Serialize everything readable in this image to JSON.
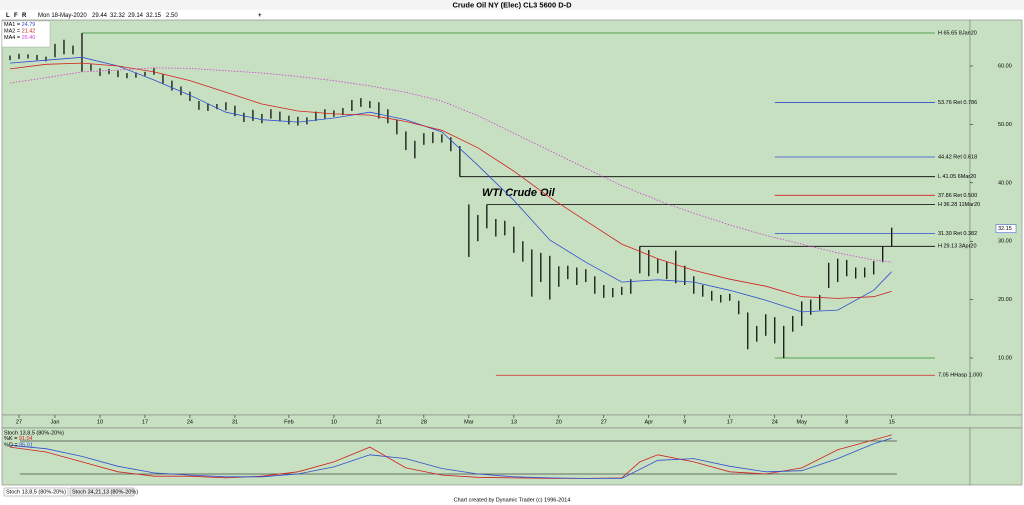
{
  "window": {
    "toolbar": {
      "letters": [
        "L",
        "F",
        "R"
      ],
      "date": "Mon 18-May-2020",
      "open": "29.44",
      "high": "32.32",
      "low": "29.14",
      "close": "32.15",
      "change": "2.50",
      "plus": "+"
    },
    "tabs": [
      "Stoch 13,8,5 (80%-20%)",
      "Stoch 34,21,13 (80%-20%)"
    ],
    "footer": "Chart created by Dynamic Trader  (c)  1996-2014"
  },
  "chart_data": [
    {
      "type": "ohlc",
      "title": "Crude Oil NY (Elec) CL3 5600 D-D",
      "annotations": [
        "WTI Crude Oil"
      ],
      "x": [
        0,
        1,
        2,
        3,
        4,
        5,
        6,
        7,
        8,
        9,
        10,
        11,
        12,
        13,
        14,
        15,
        16,
        17,
        18,
        19,
        20,
        21,
        22,
        23,
        24,
        25,
        26,
        27,
        28,
        29,
        30,
        31,
        32,
        33,
        34,
        35,
        36,
        37,
        38,
        39,
        40,
        41,
        42,
        43,
        44,
        45,
        46,
        47,
        48,
        49,
        50,
        51,
        52,
        53,
        54,
        55,
        56,
        57,
        58,
        59,
        60,
        61,
        62,
        63,
        64,
        65,
        66,
        67,
        68,
        69,
        70,
        71,
        72,
        73,
        74,
        75,
        76,
        77,
        78,
        79,
        80,
        81,
        82,
        83,
        84,
        85,
        86,
        87,
        88,
        89,
        90,
        91,
        92,
        93,
        94,
        95,
        96,
        97,
        98
      ],
      "high": [
        61.8,
        62.1,
        62.0,
        61.9,
        61.6,
        63.8,
        64.5,
        63.5,
        65.65,
        60.3,
        59.6,
        59.5,
        59.2,
        58.8,
        58.9,
        59.0,
        59.7,
        58.6,
        57.5,
        56.5,
        55.6,
        54.0,
        53.6,
        53.5,
        53.8,
        53.2,
        52.0,
        52.5,
        51.8,
        52.6,
        52.2,
        51.5,
        51.3,
        51.2,
        52.2,
        52.6,
        52.4,
        52.8,
        54.2,
        54.5,
        54.0,
        53.8,
        52.6,
        50.8,
        48.8,
        47.2,
        48.5,
        48.7,
        48.3,
        47.8,
        46.3,
        36.3,
        34.5,
        36.28,
        33.8,
        33.5,
        32.5,
        30.0,
        28.6,
        28.0,
        27.5,
        25.7,
        25.8,
        25.5,
        25.2,
        24.0,
        22.5,
        22.0,
        22.2,
        23.5,
        29.13,
        28.5,
        27.0,
        26.5,
        28.4,
        25.8,
        24.0,
        22.5,
        21.5,
        20.8,
        21.0,
        19.8,
        17.8,
        15.5,
        17.5,
        17.0,
        15.5,
        17.2,
        19.7,
        20.0,
        20.8,
        26.3,
        27.0,
        26.8,
        25.5,
        25.5,
        26.6,
        29.1,
        32.32
      ],
      "low": [
        61.0,
        61.2,
        61.3,
        61.0,
        60.8,
        61.5,
        62.0,
        62.0,
        59.0,
        59.2,
        58.3,
        58.6,
        58.1,
        57.9,
        58.0,
        58.3,
        58.5,
        57.0,
        55.8,
        55.0,
        54.0,
        52.5,
        52.3,
        52.6,
        52.4,
        51.4,
        50.4,
        50.6,
        50.2,
        51.0,
        50.5,
        50.0,
        49.8,
        50.0,
        50.6,
        51.0,
        51.3,
        51.6,
        52.3,
        53.0,
        52.8,
        51.0,
        50.2,
        48.3,
        45.6,
        44.2,
        46.5,
        46.8,
        46.9,
        45.4,
        41.05,
        27.3,
        30.0,
        32.2,
        30.8,
        31.0,
        28.0,
        26.5,
        20.5,
        23.0,
        20.0,
        22.2,
        23.5,
        22.5,
        23.0,
        21.0,
        20.3,
        20.4,
        20.8,
        21.0,
        24.5,
        24.0,
        24.5,
        23.5,
        22.8,
        22.5,
        21.0,
        20.5,
        19.8,
        19.5,
        19.8,
        17.5,
        11.5,
        12.8,
        13.8,
        12.5,
        10.0,
        14.5,
        15.5,
        17.4,
        18.2,
        22.0,
        23.0,
        24.0,
        23.6,
        23.8,
        24.3,
        26.4,
        29.14
      ],
      "color": "#000000",
      "xlim": [
        -1,
        106.7
      ],
      "xticks": [
        {
          "value": 1,
          "label": "27"
        },
        {
          "value": 5,
          "label": "Jan"
        },
        {
          "value": 10,
          "label": "10"
        },
        {
          "value": 15,
          "label": "17"
        },
        {
          "value": 20,
          "label": "24"
        },
        {
          "value": 25,
          "label": "31"
        },
        {
          "value": 31,
          "label": "Feb"
        },
        {
          "value": 36,
          "label": "10"
        },
        {
          "value": 41,
          "label": "21"
        },
        {
          "value": 46,
          "label": "28"
        },
        {
          "value": 51,
          "label": "Mar"
        },
        {
          "value": 56,
          "label": "13"
        },
        {
          "value": 61,
          "label": "20"
        },
        {
          "value": 66,
          "label": "27"
        },
        {
          "value": 71,
          "label": "Apr"
        },
        {
          "value": 75,
          "label": "9"
        },
        {
          "value": 80,
          "label": "17"
        },
        {
          "value": 85,
          "label": "24"
        },
        {
          "value": 88,
          "label": "May"
        },
        {
          "value": 93,
          "label": "8"
        },
        {
          "value": 98,
          "label": "15"
        }
      ],
      "ylim": [
        0.24,
        67.88
      ],
      "yticks": [
        {
          "value": 10,
          "label": "10.00"
        },
        {
          "value": 20,
          "label": "20.00"
        },
        {
          "value": 30,
          "label": "30.00"
        },
        {
          "value": 40,
          "label": "40.00"
        },
        {
          "value": 50,
          "label": "50.00"
        },
        {
          "value": 60,
          "label": "60.00"
        }
      ],
      "series": [
        {
          "name": "MA1 =",
          "last_label": "24.79",
          "color": "#2f4fd0",
          "dash": false,
          "x": [
            0,
            4,
            8,
            12,
            16,
            20,
            24,
            28,
            32,
            36,
            40,
            44,
            48,
            52,
            56,
            60,
            64,
            68,
            72,
            76,
            80,
            84,
            88,
            92,
            96,
            98
          ],
          "values": [
            60.5,
            61.0,
            61.5,
            60.0,
            57.6,
            55.0,
            52.1,
            50.8,
            50.4,
            51.1,
            52.1,
            50.8,
            48.7,
            43.0,
            37.0,
            30.2,
            26.4,
            23.0,
            23.4,
            23.0,
            21.6,
            19.9,
            17.9,
            18.2,
            21.6,
            24.79
          ]
        },
        {
          "name": "MA2 =",
          "last_label": "21.42",
          "color": "#d02020",
          "dash": false,
          "x": [
            0,
            4,
            8,
            12,
            16,
            20,
            24,
            28,
            32,
            36,
            40,
            44,
            48,
            52,
            56,
            60,
            64,
            68,
            72,
            76,
            80,
            84,
            88,
            92,
            96,
            98
          ],
          "values": [
            59.5,
            60.3,
            60.5,
            60.0,
            59.0,
            57.5,
            55.5,
            53.5,
            52.3,
            51.8,
            51.6,
            50.5,
            49.0,
            46.0,
            42.0,
            37.5,
            33.5,
            29.5,
            27.0,
            25.0,
            23.5,
            22.3,
            20.5,
            20.2,
            20.5,
            21.42
          ]
        },
        {
          "name": "MA4 =",
          "last_label": "26.40",
          "color": "#d040d0",
          "dash": true,
          "x": [
            0,
            4,
            8,
            12,
            16,
            20,
            24,
            28,
            32,
            36,
            40,
            44,
            48,
            52,
            56,
            60,
            64,
            68,
            72,
            76,
            80,
            84,
            88,
            92,
            96,
            98
          ],
          "values": [
            57.1,
            58.0,
            59.0,
            59.3,
            59.7,
            59.6,
            59.2,
            58.8,
            58.2,
            57.5,
            56.6,
            55.5,
            54.0,
            51.5,
            48.5,
            45.5,
            42.5,
            39.5,
            37.0,
            34.8,
            32.8,
            31.0,
            29.5,
            28.0,
            26.8,
            26.4
          ]
        }
      ],
      "levels": [
        {
          "value": 65.65,
          "from": 8,
          "label": "H 65.65 8Jan20",
          "color": "#2e8b2e"
        },
        {
          "value": 53.76,
          "from": 85,
          "label": "53.76 Ret 0.786",
          "color": "#2f4fd0"
        },
        {
          "value": 44.42,
          "from": 85,
          "label": "44.42 Ret 0.618",
          "color": "#2f4fd0"
        },
        {
          "value": 41.05,
          "from": 50,
          "label": "L 41.05 6Mar20",
          "color": "#000000"
        },
        {
          "value": 37.86,
          "from": 85,
          "label": "37.86 Ret 0.500",
          "color": "#d02020"
        },
        {
          "value": 36.28,
          "from": 53,
          "label": "H 36.28 11Mar20",
          "color": "#000000"
        },
        {
          "value": 31.3,
          "from": 85,
          "label": "31.30 Ret 0.382",
          "color": "#2f4fd0"
        },
        {
          "value": 29.13,
          "from": 70,
          "label": "H 29.13 3Apr20",
          "color": "#000000"
        },
        {
          "value": 10.0,
          "from": 85,
          "color": "#2e8b2e"
        },
        {
          "value": 7.05,
          "from": 54,
          "label": "7.05 HHasp 1.000",
          "color": "#d02020"
        }
      ]
    },
    {
      "type": "line",
      "title": "Stoch 13,8,5 (80%-20%)",
      "ylim": [
        0,
        100
      ],
      "levels": [
        80,
        20
      ],
      "series": [
        {
          "name": "%K =",
          "last_label": "91.04",
          "color": "#d02020",
          "x": [
            0,
            4,
            8,
            12,
            16,
            20,
            24,
            28,
            32,
            36,
            40,
            44,
            48,
            52,
            56,
            60,
            64,
            68,
            70,
            72,
            76,
            80,
            84,
            88,
            92,
            96,
            98
          ],
          "values": [
            69,
            60,
            42,
            24,
            16,
            16,
            13,
            16,
            24,
            42,
            69,
            31,
            18,
            14,
            13,
            12,
            12,
            13,
            42,
            55,
            42,
            24,
            20,
            31,
            64,
            82,
            91.04
          ]
        },
        {
          "name": "%D =",
          "last_label": "85.01",
          "color": "#2f4fd0",
          "x": [
            0,
            4,
            8,
            12,
            16,
            20,
            24,
            28,
            32,
            36,
            40,
            44,
            48,
            52,
            56,
            60,
            64,
            68,
            72,
            76,
            80,
            84,
            88,
            92,
            96,
            98
          ],
          "values": [
            72,
            66,
            52,
            34,
            22,
            18,
            15,
            15,
            20,
            33,
            55,
            48,
            30,
            20,
            15,
            13,
            12,
            12,
            45,
            48,
            34,
            24,
            26,
            48,
            75,
            85.01
          ]
        }
      ]
    }
  ]
}
